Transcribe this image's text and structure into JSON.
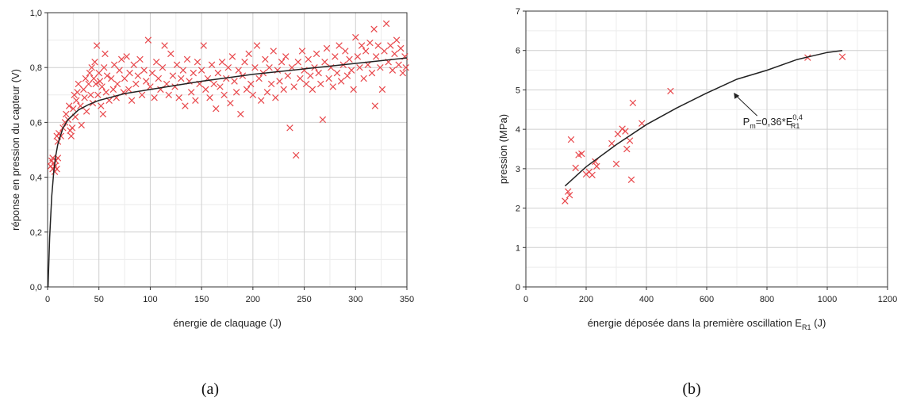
{
  "chart_data": [
    {
      "type": "scatter",
      "panel_label": "(a)",
      "xlabel": "énergie de claquage (J)",
      "ylabel": "réponse en pression du capteur (V)",
      "xlim": [
        0,
        350
      ],
      "ylim": [
        0,
        1.0
      ],
      "xticks": [
        "0",
        "50",
        "100",
        "150",
        "200",
        "250",
        "300",
        "350"
      ],
      "yticks": [
        "0,0",
        "0,2",
        "0,4",
        "0,6",
        "0,8",
        "1,0"
      ],
      "grid": true,
      "marker": "x",
      "marker_color": "#e8474b",
      "fit_color": "#222222",
      "series": [
        {
          "points": [
            [
              3,
              0.44
            ],
            [
              4,
              0.46
            ],
            [
              5,
              0.43
            ],
            [
              5,
              0.47
            ],
            [
              6,
              0.45
            ],
            [
              7,
              0.42
            ],
            [
              7,
              0.44
            ],
            [
              8,
              0.46
            ],
            [
              9,
              0.43
            ],
            [
              10,
              0.47
            ],
            [
              9,
              0.55
            ],
            [
              10,
              0.53
            ],
            [
              11,
              0.56
            ],
            [
              13,
              0.55
            ],
            [
              15,
              0.58
            ],
            [
              17,
              0.6
            ],
            [
              18,
              0.63
            ],
            [
              20,
              0.61
            ],
            [
              21,
              0.66
            ],
            [
              22,
              0.57
            ],
            [
              23,
              0.55
            ],
            [
              24,
              0.58
            ],
            [
              25,
              0.65
            ],
            [
              26,
              0.7
            ],
            [
              27,
              0.62
            ],
            [
              28,
              0.68
            ],
            [
              29,
              0.71
            ],
            [
              30,
              0.74
            ],
            [
              32,
              0.66
            ],
            [
              33,
              0.59
            ],
            [
              35,
              0.72
            ],
            [
              36,
              0.69
            ],
            [
              37,
              0.76
            ],
            [
              38,
              0.64
            ],
            [
              40,
              0.74
            ],
            [
              41,
              0.78
            ],
            [
              42,
              0.7
            ],
            [
              43,
              0.8
            ],
            [
              44,
              0.67
            ],
            [
              45,
              0.76
            ],
            [
              46,
              0.82
            ],
            [
              47,
              0.74
            ],
            [
              48,
              0.88
            ],
            [
              49,
              0.7
            ],
            [
              50,
              0.78
            ],
            [
              51,
              0.75
            ],
            [
              52,
              0.66
            ],
            [
              53,
              0.73
            ],
            [
              54,
              0.63
            ],
            [
              55,
              0.8
            ],
            [
              56,
              0.85
            ],
            [
              57,
              0.71
            ],
            [
              58,
              0.77
            ],
            [
              60,
              0.68
            ],
            [
              62,
              0.76
            ],
            [
              64,
              0.72
            ],
            [
              65,
              0.81
            ],
            [
              67,
              0.69
            ],
            [
              68,
              0.74
            ],
            [
              70,
              0.79
            ],
            [
              72,
              0.83
            ],
            [
              74,
              0.71
            ],
            [
              75,
              0.76
            ],
            [
              77,
              0.84
            ],
            [
              79,
              0.72
            ],
            [
              80,
              0.78
            ],
            [
              82,
              0.68
            ],
            [
              84,
              0.81
            ],
            [
              86,
              0.74
            ],
            [
              88,
              0.77
            ],
            [
              90,
              0.83
            ],
            [
              92,
              0.7
            ],
            [
              94,
              0.79
            ],
            [
              96,
              0.75
            ],
            [
              98,
              0.9
            ],
            [
              100,
              0.73
            ],
            [
              102,
              0.78
            ],
            [
              104,
              0.69
            ],
            [
              106,
              0.82
            ],
            [
              108,
              0.76
            ],
            [
              110,
              0.72
            ],
            [
              112,
              0.8
            ],
            [
              114,
              0.88
            ],
            [
              116,
              0.74
            ],
            [
              118,
              0.7
            ],
            [
              120,
              0.85
            ],
            [
              122,
              0.77
            ],
            [
              124,
              0.73
            ],
            [
              126,
              0.81
            ],
            [
              128,
              0.69
            ],
            [
              130,
              0.76
            ],
            [
              132,
              0.79
            ],
            [
              134,
              0.66
            ],
            [
              136,
              0.83
            ],
            [
              138,
              0.75
            ],
            [
              140,
              0.71
            ],
            [
              142,
              0.78
            ],
            [
              144,
              0.68
            ],
            [
              146,
              0.82
            ],
            [
              148,
              0.74
            ],
            [
              150,
              0.79
            ],
            [
              152,
              0.88
            ],
            [
              154,
              0.72
            ],
            [
              156,
              0.76
            ],
            [
              158,
              0.69
            ],
            [
              160,
              0.81
            ],
            [
              162,
              0.74
            ],
            [
              164,
              0.65
            ],
            [
              166,
              0.78
            ],
            [
              168,
              0.73
            ],
            [
              170,
              0.82
            ],
            [
              172,
              0.7
            ],
            [
              174,
              0.76
            ],
            [
              176,
              0.8
            ],
            [
              178,
              0.67
            ],
            [
              180,
              0.84
            ],
            [
              182,
              0.75
            ],
            [
              184,
              0.71
            ],
            [
              186,
              0.79
            ],
            [
              188,
              0.63
            ],
            [
              190,
              0.77
            ],
            [
              192,
              0.82
            ],
            [
              194,
              0.72
            ],
            [
              196,
              0.85
            ],
            [
              198,
              0.74
            ],
            [
              200,
              0.7
            ],
            [
              202,
              0.8
            ],
            [
              204,
              0.88
            ],
            [
              206,
              0.76
            ],
            [
              208,
              0.68
            ],
            [
              210,
              0.78
            ],
            [
              212,
              0.83
            ],
            [
              214,
              0.71
            ],
            [
              216,
              0.8
            ],
            [
              218,
              0.74
            ],
            [
              220,
              0.86
            ],
            [
              222,
              0.69
            ],
            [
              224,
              0.79
            ],
            [
              226,
              0.75
            ],
            [
              228,
              0.82
            ],
            [
              230,
              0.72
            ],
            [
              232,
              0.84
            ],
            [
              234,
              0.77
            ],
            [
              236,
              0.58
            ],
            [
              238,
              0.8
            ],
            [
              240,
              0.73
            ],
            [
              242,
              0.48
            ],
            [
              244,
              0.82
            ],
            [
              246,
              0.76
            ],
            [
              248,
              0.86
            ],
            [
              250,
              0.79
            ],
            [
              252,
              0.74
            ],
            [
              254,
              0.83
            ],
            [
              256,
              0.77
            ],
            [
              258,
              0.72
            ],
            [
              260,
              0.8
            ],
            [
              262,
              0.85
            ],
            [
              264,
              0.78
            ],
            [
              266,
              0.74
            ],
            [
              268,
              0.61
            ],
            [
              270,
              0.82
            ],
            [
              272,
              0.87
            ],
            [
              274,
              0.76
            ],
            [
              276,
              0.8
            ],
            [
              278,
              0.73
            ],
            [
              280,
              0.84
            ],
            [
              282,
              0.78
            ],
            [
              284,
              0.88
            ],
            [
              286,
              0.75
            ],
            [
              288,
              0.81
            ],
            [
              290,
              0.86
            ],
            [
              292,
              0.77
            ],
            [
              294,
              0.83
            ],
            [
              296,
              0.79
            ],
            [
              298,
              0.72
            ],
            [
              300,
              0.91
            ],
            [
              302,
              0.84
            ],
            [
              304,
              0.8
            ],
            [
              306,
              0.88
            ],
            [
              308,
              0.76
            ],
            [
              310,
              0.86
            ],
            [
              312,
              0.81
            ],
            [
              314,
              0.89
            ],
            [
              316,
              0.78
            ],
            [
              318,
              0.94
            ],
            [
              319,
              0.66
            ],
            [
              320,
              0.84
            ],
            [
              322,
              0.88
            ],
            [
              324,
              0.8
            ],
            [
              326,
              0.72
            ],
            [
              328,
              0.86
            ],
            [
              330,
              0.96
            ],
            [
              332,
              0.82
            ],
            [
              334,
              0.88
            ],
            [
              336,
              0.79
            ],
            [
              338,
              0.85
            ],
            [
              340,
              0.9
            ],
            [
              342,
              0.81
            ],
            [
              344,
              0.87
            ],
            [
              346,
              0.78
            ],
            [
              348,
              0.84
            ],
            [
              349,
              0.8
            ]
          ]
        }
      ],
      "fit": {
        "points": [
          [
            0.5,
            0.0
          ],
          [
            2,
            0.18
          ],
          [
            4,
            0.33
          ],
          [
            6,
            0.42
          ],
          [
            8,
            0.48
          ],
          [
            10,
            0.52
          ],
          [
            15,
            0.58
          ],
          [
            20,
            0.61
          ],
          [
            30,
            0.645
          ],
          [
            40,
            0.665
          ],
          [
            50,
            0.68
          ],
          [
            75,
            0.705
          ],
          [
            100,
            0.72
          ],
          [
            150,
            0.75
          ],
          [
            200,
            0.775
          ],
          [
            250,
            0.795
          ],
          [
            300,
            0.815
          ],
          [
            350,
            0.835
          ]
        ]
      }
    },
    {
      "type": "scatter",
      "panel_label": "(b)",
      "xlabel": "énergie déposée dans la première oscillation E",
      "xlabel_sub": "R1",
      "xlabel_unit": " (J)",
      "ylabel": "pression (MPa)",
      "xlim": [
        0,
        1200
      ],
      "ylim": [
        0,
        7
      ],
      "xticks": [
        "0",
        "200",
        "400",
        "600",
        "800",
        "1000",
        "1200"
      ],
      "yticks": [
        "0",
        "1",
        "2",
        "3",
        "4",
        "5",
        "6",
        "7"
      ],
      "grid": true,
      "marker": "x",
      "marker_color": "#e8474b",
      "fit_color": "#222222",
      "series": [
        {
          "points": [
            [
              130,
              2.18
            ],
            [
              140,
              2.42
            ],
            [
              145,
              2.33
            ],
            [
              150,
              3.74
            ],
            [
              165,
              3.02
            ],
            [
              175,
              3.35
            ],
            [
              185,
              3.38
            ],
            [
              200,
              2.86
            ],
            [
              210,
              2.92
            ],
            [
              220,
              2.84
            ],
            [
              230,
              3.18
            ],
            [
              235,
              3.06
            ],
            [
              285,
              3.64
            ],
            [
              300,
              3.12
            ],
            [
              305,
              3.88
            ],
            [
              320,
              4.01
            ],
            [
              330,
              3.95
            ],
            [
              335,
              3.5
            ],
            [
              345,
              3.71
            ],
            [
              350,
              2.72
            ],
            [
              355,
              4.67
            ],
            [
              385,
              4.15
            ],
            [
              480,
              4.97
            ],
            [
              935,
              5.82
            ],
            [
              1050,
              5.84
            ]
          ]
        }
      ],
      "fit": {
        "points": [
          [
            130,
            2.56
          ],
          [
            200,
            3.05
          ],
          [
            300,
            3.61
          ],
          [
            400,
            4.12
          ],
          [
            500,
            4.54
          ],
          [
            600,
            4.92
          ],
          [
            700,
            5.27
          ],
          [
            800,
            5.5
          ],
          [
            900,
            5.77
          ],
          [
            1000,
            5.95
          ],
          [
            1050,
            6.0
          ]
        ]
      },
      "annotation": {
        "text_main": "P",
        "text_sub1": "m",
        "text_mid": "=0,36*E",
        "text_sup": "0,4",
        "text_sub2": "R1",
        "arrow_to": [
          690,
          4.93
        ],
        "text_anchor": [
          720,
          4.1
        ]
      }
    }
  ]
}
